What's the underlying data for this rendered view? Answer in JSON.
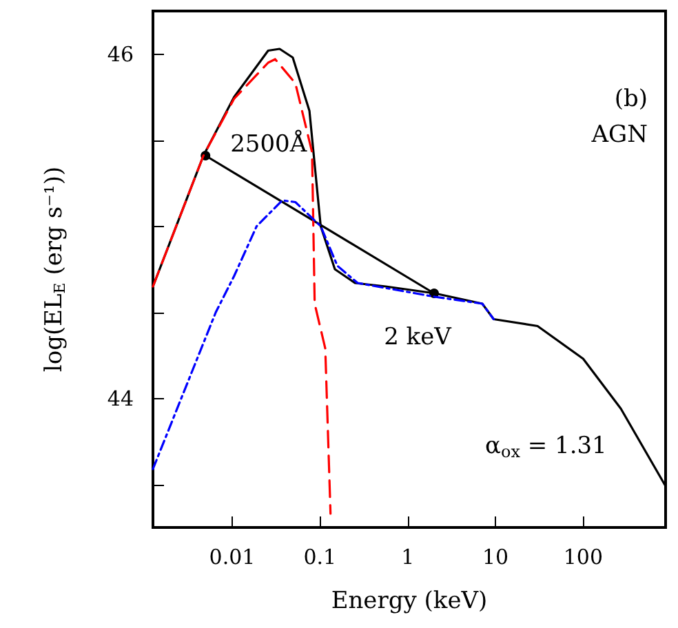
{
  "chart_data": {
    "type": "line",
    "xlabel": "Energy (keV)",
    "ylabel": "log(EL$_{E}$ (erg s⁻¹))",
    "log": "x",
    "grid": false,
    "xlim": [
      0.00125,
      870
    ],
    "ylim": [
      43.25,
      46.25
    ],
    "xticks": [
      0.01,
      0.1,
      1,
      10,
      100
    ],
    "yticks": [
      {
        "value": 43.5,
        "label": null
      },
      44,
      {
        "value": 44.5,
        "label": null
      },
      {
        "value": 45,
        "label": null
      },
      {
        "value": 45.5,
        "label": null
      },
      46
    ],
    "annotations": [
      "(b)",
      "AGN",
      "α$_{ox}$ = 1.31",
      {
        "text": "2500Å",
        "x": 0.00496,
        "y": 45.41
      },
      {
        "text": "2 keV",
        "x": 2,
        "y": 44.61
      }
    ],
    "series": [
      {
        "color": "#ff0000",
        "line_style": "dashed",
        "marker": "none",
        "x": [
          0.00125,
          0.0047,
          0.0105,
          0.0257,
          0.0309,
          0.0525,
          0.0813,
          0.0871,
          0.115,
          0.132
        ],
        "values": [
          44.65,
          45.41,
          45.74,
          45.95,
          45.97,
          45.83,
          45.43,
          44.55,
          44.29,
          43.33
        ]
      },
      {
        "color": "#0000ff",
        "line_style": "dashdot",
        "marker": "none",
        "x": [
          0.00125,
          0.0065,
          0.0105,
          0.019,
          0.0372,
          0.0525,
          0.102,
          0.158,
          0.269,
          2.04,
          7.08,
          9.55
        ],
        "values": [
          43.59,
          44.5,
          44.71,
          45.0,
          45.15,
          45.14,
          45.0,
          44.77,
          44.67,
          44.59,
          44.55,
          44.46
        ]
      },
      {
        "color": "#000000",
        "line_style": "solid",
        "marker": "none",
        "x": [
          0.00125,
          0.0047,
          0.0105,
          0.0257,
          0.0347,
          0.049,
          0.0759,
          0.102,
          0.148,
          0.251,
          0.562,
          2.04,
          7.08,
          9.55,
          30.2,
          100,
          269,
          870
        ],
        "values": [
          44.65,
          45.41,
          45.75,
          46.02,
          46.03,
          45.98,
          45.67,
          45.0,
          44.75,
          44.67,
          44.65,
          44.61,
          44.55,
          44.46,
          44.42,
          44.23,
          43.94,
          43.49
        ]
      },
      {
        "color": "#000000",
        "line_style": "solid",
        "marker": "circle",
        "x": [
          0.00496,
          2
        ],
        "values": [
          45.41,
          44.61
        ]
      }
    ]
  }
}
